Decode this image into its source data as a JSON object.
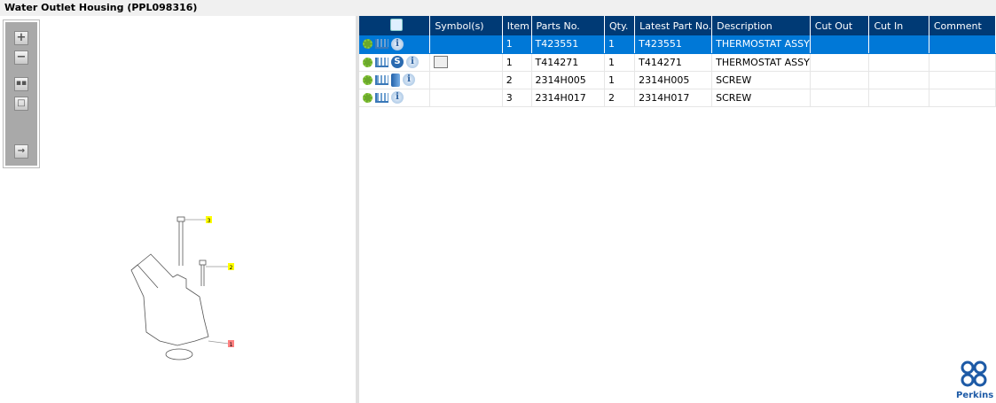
{
  "title": "Water Outlet Housing (PPL098316)",
  "toolbar": {
    "icons": [
      "zoom-in-icon",
      "zoom-out-icon",
      "fit-all-icon",
      "fit-window-icon",
      "export-icon"
    ]
  },
  "drawing": {
    "callouts": [
      "3",
      "2",
      "1"
    ]
  },
  "table": {
    "columns": [
      "",
      "Symbol(s)",
      "Item",
      "Parts No.",
      "Qty.",
      "Latest Part No.",
      "Description",
      "Cut Out",
      "Cut In",
      "Comment"
    ],
    "rows": [
      {
        "selected": true,
        "icons": [
          "gear",
          "cart",
          "info"
        ],
        "symbol": "",
        "item": "1",
        "parts_no": "T423551",
        "qty": "1",
        "latest": "T423551",
        "description": "THERMOSTAT ASSY",
        "cut_out": "",
        "cut_in": "",
        "comment": ""
      },
      {
        "selected": false,
        "icons": [
          "gear",
          "cart",
          "s",
          "info"
        ],
        "symbol": "book-search",
        "item": "1",
        "parts_no": "T414271",
        "qty": "1",
        "latest": "T414271",
        "description": "THERMOSTAT ASSY",
        "cut_out": "",
        "cut_in": "",
        "comment": ""
      },
      {
        "selected": false,
        "icons": [
          "gear",
          "cart",
          "book",
          "info"
        ],
        "symbol": "",
        "item": "2",
        "parts_no": "2314H005",
        "qty": "1",
        "latest": "2314H005",
        "description": "SCREW",
        "cut_out": "",
        "cut_in": "",
        "comment": ""
      },
      {
        "selected": false,
        "icons": [
          "gear",
          "cart",
          "info"
        ],
        "symbol": "",
        "item": "3",
        "parts_no": "2314H017",
        "qty": "2",
        "latest": "2314H017",
        "description": "SCREW",
        "cut_out": "",
        "cut_in": "",
        "comment": ""
      }
    ]
  },
  "logo": {
    "name": "Perkins"
  },
  "colors": {
    "header": "#003a75",
    "selected": "#0078d7"
  }
}
